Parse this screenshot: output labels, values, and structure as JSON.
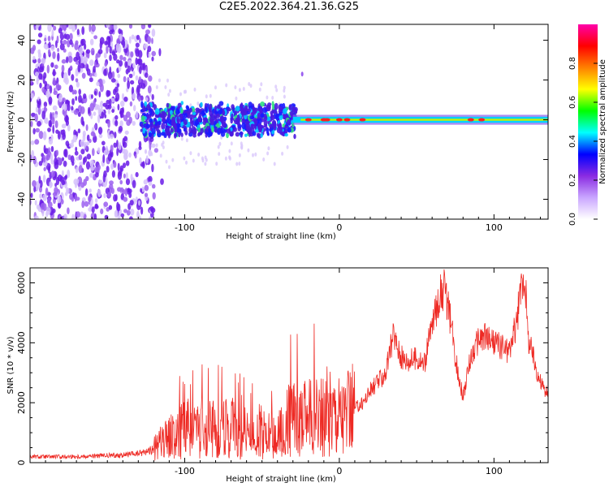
{
  "title": "C2E5.2022.364.21.36.G25",
  "chart_data": [
    {
      "type": "heatmap",
      "xlabel": "Height of straight line (km)",
      "ylabel": "Frequency (Hz)",
      "xlim": [
        -200,
        135
      ],
      "ylim": [
        -50,
        48
      ],
      "xticks": [
        -100,
        0,
        100
      ],
      "yticks": [
        -40,
        -20,
        0,
        20,
        40
      ],
      "colorbar": {
        "label": "Normalized spectral amplitude",
        "range": [
          0,
          1
        ],
        "ticks": [
          "0.0",
          "0.2",
          "0.4",
          "0.6",
          "0.8"
        ],
        "tick_values": [
          0,
          0.2,
          0.4,
          0.6,
          0.8
        ],
        "colors": [
          "#ffffff",
          "#c9a6ff",
          "#8a2be2",
          "#0000ff",
          "#00ffff",
          "#00ff00",
          "#ffff00",
          "#ff8000",
          "#ff0000",
          "#ff00aa"
        ]
      },
      "description_regions": [
        {
          "x_range": [
            -200,
            -120
          ],
          "freq_range": [
            -50,
            48
          ],
          "amplitude": 0.15
        },
        {
          "x_range": [
            -128,
            -30
          ],
          "freq_range": [
            -8,
            8
          ],
          "amplitude": 0.35
        },
        {
          "x_range": [
            -30,
            135
          ],
          "freq_range": [
            -2,
            2
          ],
          "amplitude": 0.6
        }
      ]
    },
    {
      "type": "line",
      "xlabel": "Height of straight line (km)",
      "ylabel": "SNR (10 * v/v)",
      "xlim": [
        -200,
        135
      ],
      "ylim": [
        0,
        6500
      ],
      "xticks": [
        -100,
        0,
        100
      ],
      "yticks": [
        0,
        2000,
        4000,
        6000
      ],
      "color": "#ee2a24",
      "series": [
        {
          "x": [
            -200,
            -180,
            -160,
            -140,
            -130,
            -120,
            -115,
            -110,
            -105,
            -100,
            -95,
            -90,
            -85,
            -80,
            -75,
            -70,
            -65,
            -60,
            -55,
            -50,
            -45,
            -40,
            -35,
            -30,
            -25,
            -20,
            -15,
            -10,
            -5,
            0,
            5,
            10,
            15,
            20,
            25,
            30,
            35,
            40,
            45,
            50,
            55,
            60,
            65,
            68,
            72,
            76,
            80,
            85,
            90,
            95,
            100,
            105,
            110,
            115,
            118,
            120,
            122,
            125,
            130,
            135
          ],
          "y": [
            200,
            200,
            220,
            250,
            300,
            450,
            700,
            800,
            1000,
            1100,
            1200,
            1100,
            1300,
            1000,
            1100,
            1200,
            900,
            1000,
            800,
            1000,
            900,
            800,
            1300,
            1500,
            1400,
            1500,
            1600,
            1700,
            1800,
            1700,
            1600,
            1800,
            2000,
            2400,
            2700,
            3000,
            4300,
            3500,
            3400,
            3500,
            3300,
            4600,
            5600,
            5800,
            4700,
            3200,
            2200,
            3500,
            4100,
            4200,
            4000,
            3900,
            3700,
            4800,
            6000,
            6200,
            4200,
            3600,
            2700,
            2200
          ]
        }
      ]
    }
  ]
}
